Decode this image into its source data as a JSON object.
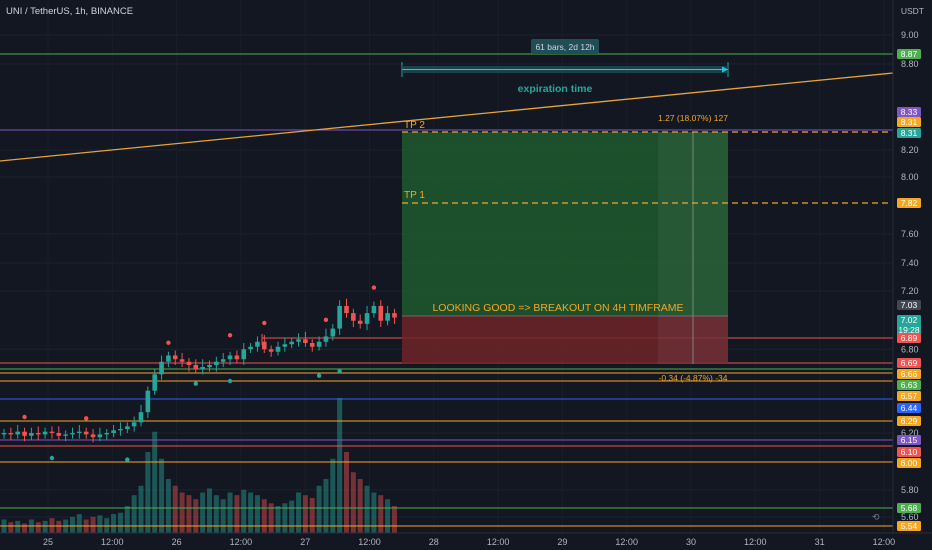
{
  "symbol_header": "UNI / TetherUS, 1h, BINANCE",
  "currency_label": "USDT",
  "colors": {
    "background": "#131722",
    "up": "#26a69a",
    "down": "#ef5350",
    "profit_zone": "#1f5a2e",
    "loss_zone": "#6e2328",
    "tp": "#f5a623",
    "trend": "#e8a23a",
    "purple": "#7e57c2",
    "blue": "#2962ff",
    "green_line": "#4caf50",
    "teal_label": "#26c6da"
  },
  "chart_data": {
    "type": "candlestick",
    "y_axis_ticks": [
      "9.00",
      "8.80",
      "8.20",
      "8.00",
      "7.60",
      "7.40",
      "7.20",
      "6.80",
      "6.20",
      "5.80",
      "5.60"
    ],
    "x_axis_ticks": [
      "25",
      "12:00",
      "26",
      "12:00",
      "27",
      "12:00",
      "28",
      "12:00",
      "29",
      "12:00",
      "30",
      "12:00",
      "31",
      "12:00"
    ],
    "closes": [
      6.2,
      6.19,
      6.21,
      6.18,
      6.2,
      6.19,
      6.21,
      6.2,
      6.18,
      6.19,
      6.2,
      6.21,
      6.19,
      6.17,
      6.19,
      6.2,
      6.22,
      6.23,
      6.25,
      6.28,
      6.35,
      6.5,
      6.62,
      6.7,
      6.75,
      6.72,
      6.7,
      6.68,
      6.66,
      6.67,
      6.68,
      6.7,
      6.72,
      6.75,
      6.72,
      6.8,
      6.82,
      6.86,
      6.8,
      6.78,
      6.82,
      6.84,
      6.86,
      6.88,
      6.85,
      6.82,
      6.86,
      6.9,
      6.95,
      7.1,
      7.05,
      7.0,
      6.98,
      7.05,
      7.1,
      7.0,
      7.05,
      7.02
    ],
    "volume_relative": [
      0.1,
      0.08,
      0.09,
      0.07,
      0.1,
      0.08,
      0.09,
      0.11,
      0.09,
      0.1,
      0.12,
      0.14,
      0.1,
      0.12,
      0.13,
      0.11,
      0.14,
      0.15,
      0.2,
      0.28,
      0.35,
      0.6,
      0.75,
      0.55,
      0.4,
      0.35,
      0.3,
      0.28,
      0.25,
      0.3,
      0.33,
      0.28,
      0.25,
      0.3,
      0.28,
      0.32,
      0.3,
      0.28,
      0.25,
      0.22,
      0.2,
      0.22,
      0.24,
      0.3,
      0.28,
      0.26,
      0.35,
      0.4,
      0.55,
      1.0,
      0.6,
      0.45,
      0.4,
      0.35,
      0.3,
      0.28,
      0.25,
      0.2
    ],
    "horizontal_levels": [
      8.87,
      8.33,
      8.31,
      7.82,
      6.89,
      6.69,
      6.66,
      6.63,
      6.57,
      6.44,
      6.29,
      6.15,
      6.1,
      6.0,
      5.68,
      5.54
    ],
    "trendline": {
      "from_price": 8.12,
      "to_price": 8.73
    },
    "position": {
      "entry": 7.04,
      "target": 8.31,
      "stop": 6.7
    }
  },
  "price_badges": [
    {
      "text": "8.87",
      "color": "#4caf50"
    },
    {
      "text": "8.33",
      "color": "#7e57c2"
    },
    {
      "text": "8.31",
      "color": "#f5a623"
    },
    {
      "text": "8.31",
      "color": "#26a69a"
    },
    {
      "text": "7.82",
      "color": "#f5a623"
    },
    {
      "text": "7.03",
      "color": "#434651"
    },
    {
      "text": "7.02",
      "color": "#26a69a",
      "sub": "19:28"
    },
    {
      "text": "6.89",
      "color": "#ef5350"
    },
    {
      "text": "6.69",
      "color": "#ef5350"
    },
    {
      "text": "6.66",
      "color": "#f5a623"
    },
    {
      "text": "6.63",
      "color": "#4caf50"
    },
    {
      "text": "6.57",
      "color": "#f5a623"
    },
    {
      "text": "6.44",
      "color": "#2962ff"
    },
    {
      "text": "6.29",
      "color": "#f5a623"
    },
    {
      "text": "6.15",
      "color": "#7e57c2"
    },
    {
      "text": "6.10",
      "color": "#ef5350"
    },
    {
      "text": "6.00",
      "color": "#f5a623"
    },
    {
      "text": "5.68",
      "color": "#4caf50"
    },
    {
      "text": "5.54",
      "color": "#f5a623"
    }
  ],
  "annotations": {
    "bars_range": "61 bars, 2d 12h",
    "expiration": "expiration time",
    "tp2": "TP 2",
    "tp1": "TP 1",
    "target_info": "1.27 (18.07%) 127",
    "stop_info": "-0.34 (-4.87%) -34",
    "comment": "LOOKING GOOD  => BREAKOUT ON 4H TIMFRAME"
  }
}
